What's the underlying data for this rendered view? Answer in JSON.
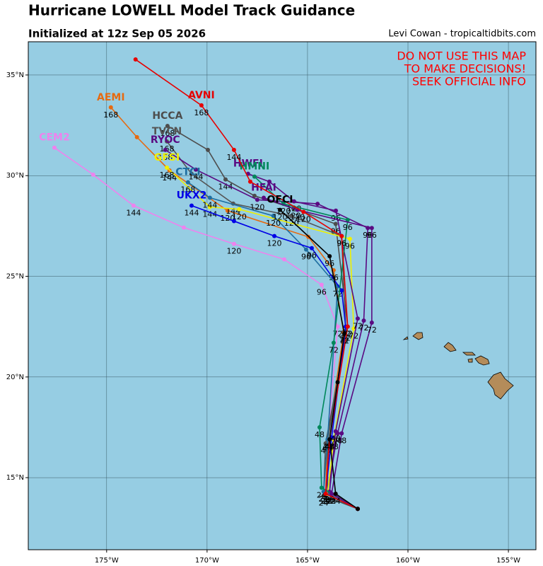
{
  "header": {
    "title": "Hurricane LOWELL Model Track Guidance",
    "subtitle": "Initialized at 12z Sep 05 2026",
    "credit": "Levi Cowan - tropicaltidbits.com"
  },
  "warning": [
    "DO NOT USE THIS MAP",
    "TO MAKE DECISIONS!",
    "SEEK OFFICIAL INFO"
  ],
  "map": {
    "xlim": [
      -178.9,
      -153.63
    ],
    "ylim": [
      11.42,
      36.65
    ],
    "grid": true,
    "xticks": [
      {
        "value": -175,
        "label": "175°W"
      },
      {
        "value": -170,
        "label": "170°W"
      },
      {
        "value": -165,
        "label": "165°W"
      },
      {
        "value": -160,
        "label": "160°W"
      },
      {
        "value": -155,
        "label": "155°W"
      }
    ],
    "yticks": [
      {
        "value": 15,
        "label": "15°N"
      },
      {
        "value": 20,
        "label": "20°N"
      },
      {
        "value": 25,
        "label": "25°N"
      },
      {
        "value": 30,
        "label": "30°N"
      },
      {
        "value": 35,
        "label": "35°N"
      }
    ],
    "tracks": [
      {
        "name": "CEM2",
        "color": "#ee82ee",
        "lon": [
          -162.5,
          -164.1,
          -164.0,
          -163.5,
          -164.3,
          -166.16,
          -168.66,
          -171.16,
          -173.66,
          -175.67,
          -177.6
        ],
        "lat": [
          13.45,
          14.2,
          16.8,
          22.5,
          24.58,
          25.84,
          26.61,
          27.42,
          28.51,
          30.05,
          31.39
        ],
        "hours": [
          null,
          24,
          48,
          72,
          96,
          null,
          120,
          null,
          144,
          null,
          null
        ]
      },
      {
        "name": "AEMI",
        "color": "#e66a10",
        "lon": [
          -162.5,
          -164.1,
          -164.0,
          -163.2,
          -163.7,
          -164.96,
          -168.98,
          -171.87,
          -173.49,
          -174.79
        ],
        "lat": [
          13.45,
          14.2,
          16.8,
          22.2,
          25.3,
          26.96,
          28.26,
          30.26,
          31.91,
          33.39
        ],
        "hours": [
          null,
          24,
          48,
          72,
          96,
          null,
          120,
          144,
          null,
          168
        ]
      },
      {
        "name": "HCCA",
        "color": "#4d4d4d",
        "lon": [
          -162.5,
          -164.2,
          -164.1,
          -163.0,
          -163.6,
          -165.7,
          -167.64,
          -169.08,
          -169.96,
          -171.97
        ],
        "lat": [
          13.45,
          14.1,
          16.7,
          22.5,
          27.6,
          28.37,
          29.0,
          29.81,
          31.28,
          32.47
        ],
        "hours": [
          null,
          24,
          48,
          72,
          96,
          120,
          null,
          144,
          null,
          168
        ]
      },
      {
        "name": "TVCN",
        "color": "#555555",
        "lon": [
          -162.5,
          -164.0,
          -164.0,
          -163.1,
          -163.3,
          -165.8,
          -168.7,
          -170.77,
          -172.0
        ],
        "lat": [
          13.45,
          14.2,
          16.8,
          22.3,
          27.0,
          28.0,
          28.61,
          30.09,
          31.7
        ],
        "hours": [
          null,
          24,
          48,
          72,
          96,
          120,
          144,
          null,
          168
        ]
      },
      {
        "name": "RYOC",
        "color": "#5a0a82",
        "lon": [
          -162.5,
          -164.0,
          -163.5,
          -162.2,
          -162.0,
          -164.5,
          -167.5,
          -170.56,
          -172.08
        ],
        "lat": [
          13.45,
          14.3,
          17.2,
          22.8,
          27.4,
          28.6,
          28.8,
          30.3,
          31.28
        ],
        "hours": [
          null,
          24,
          48,
          72,
          96,
          null,
          120,
          144,
          168
        ]
      },
      {
        "name": "GFSI",
        "color": "#f0f000",
        "lon": [
          -162.5,
          -164.0,
          -163.7,
          -162.7,
          -162.89,
          -168.4,
          -169.86,
          -172.0
        ],
        "lat": [
          13.45,
          14.2,
          16.9,
          22.4,
          26.86,
          28.33,
          28.44,
          30.4
        ],
        "hours": [
          null,
          24,
          48,
          72,
          96,
          120,
          144,
          168
        ]
      },
      {
        "name": "CTCI",
        "color": "#1e6ea0",
        "lon": [
          -162.5,
          -164.2,
          -164.0,
          -163.5,
          -165.07,
          -166.7,
          -169.86,
          -170.95
        ],
        "lat": [
          13.45,
          14.3,
          16.9,
          24.5,
          26.33,
          28.0,
          28.9,
          29.67
        ],
        "hours": [
          null,
          24,
          48,
          72,
          96,
          120,
          144,
          168
        ]
      },
      {
        "name": "UKX2",
        "color": "#0000e6",
        "lon": [
          -162.5,
          -164.1,
          -163.8,
          -163.1,
          -163.3,
          -164.79,
          -166.65,
          -168.66,
          -170.77
        ],
        "lat": [
          13.45,
          14.2,
          17.0,
          22.5,
          24.3,
          26.4,
          27.0,
          27.74,
          28.51
        ],
        "hours": [
          null,
          24,
          48,
          72,
          null,
          96,
          120,
          null,
          144
        ]
      },
      {
        "name": "HWFI",
        "color": "#5a0a82",
        "lon": [
          -162.5,
          -163.9,
          -163.6,
          -162.5,
          -163.59,
          -165.67,
          -166.9,
          -167.96
        ],
        "lat": [
          13.45,
          14.3,
          17.3,
          22.9,
          28.26,
          28.72,
          29.7,
          30.09
        ],
        "hours": [
          null,
          24,
          48,
          72,
          96,
          120,
          null,
          null
        ]
      },
      {
        "name": "HMNI",
        "color": "#00875a",
        "lon": [
          -162.5,
          -164.3,
          -164.4,
          -163.7,
          -163.0,
          -166.2,
          -167.64
        ],
        "lat": [
          13.45,
          14.5,
          17.5,
          21.7,
          27.8,
          28.6,
          29.95
        ],
        "hours": [
          null,
          24,
          48,
          72,
          96,
          120,
          null
        ]
      },
      {
        "name": "HFAI",
        "color": "#5a0a82",
        "lon": [
          -162.5,
          -163.8,
          -163.3,
          -161.8,
          -161.8,
          -165.5,
          -167.18
        ],
        "lat": [
          13.45,
          14.2,
          17.2,
          22.7,
          27.4,
          28.3,
          28.9
        ],
        "hours": [
          null,
          24,
          48,
          72,
          96,
          120,
          null
        ]
      },
      {
        "name": "AVNI",
        "color": "#e60000",
        "lon": [
          -162.5,
          -164.1,
          -163.9,
          -163.0,
          -163.3,
          -165.2,
          -167.85,
          -168.66,
          -170.28,
          -173.56
        ],
        "lat": [
          13.45,
          14.2,
          16.9,
          22.5,
          27.0,
          28.2,
          29.7,
          31.28,
          33.49,
          35.77
        ],
        "hours": [
          null,
          24,
          48,
          72,
          96,
          120,
          null,
          144,
          168,
          null
        ]
      },
      {
        "name": "OFCI",
        "color": "#000000",
        "lon": [
          -162.5,
          -163.6,
          -163.9,
          -163.5,
          -163.17,
          -163.9,
          -166.37
        ],
        "lat": [
          13.45,
          14.2,
          16.9,
          19.74,
          22.16,
          26.0,
          28.3
        ],
        "hours": [
          null,
          24,
          48,
          null,
          72,
          96,
          120
        ]
      }
    ]
  }
}
